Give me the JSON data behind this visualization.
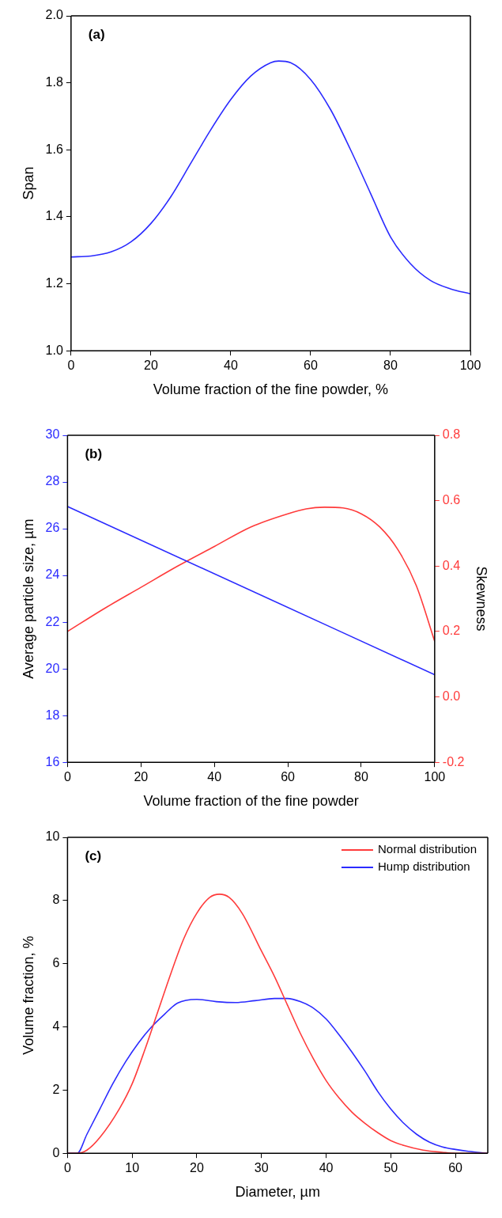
{
  "chart_data": [
    {
      "type": "line",
      "xlabel": "Volume fraction of the fine powder, %",
      "ylabel": "Span",
      "annotations": [
        "(a)"
      ],
      "xlim": [
        0,
        100
      ],
      "xticks": [
        0,
        20,
        40,
        60,
        80,
        100
      ],
      "ylim": [
        1,
        2
      ],
      "yticks": [
        {
          "value": 1,
          "label": "1.0"
        },
        {
          "value": 1.2,
          "label": "1.2"
        },
        {
          "value": 1.4,
          "label": "1.4"
        },
        {
          "value": 1.6,
          "label": "1.6"
        },
        {
          "value": 1.8,
          "label": "1.8"
        },
        {
          "value": 2,
          "label": "2.0"
        }
      ],
      "grid": false,
      "legend": false,
      "marker": "none",
      "line_style": "solid",
      "series": [
        {
          "color": "#2b2bff",
          "x": [
            0,
            5,
            10,
            15,
            20,
            25,
            30,
            35,
            40,
            45,
            50,
            52,
            55,
            60,
            65,
            70,
            75,
            80,
            85,
            90,
            95,
            100
          ],
          "values": [
            1.28,
            1.283,
            1.295,
            1.325,
            1.38,
            1.46,
            1.56,
            1.66,
            1.75,
            1.82,
            1.86,
            1.865,
            1.86,
            1.81,
            1.72,
            1.6,
            1.47,
            1.34,
            1.26,
            1.21,
            1.185,
            1.17
          ]
        }
      ]
    },
    {
      "type": "line",
      "xlabel": "Volume fraction of the fine powder",
      "ylabel": "Average particle size, µm",
      "y2label": "Skewness",
      "annotations": [
        "(b)"
      ],
      "xlim": [
        0,
        100
      ],
      "xticks": [
        0,
        20,
        40,
        60,
        80,
        100
      ],
      "ylim": [
        16,
        30
      ],
      "yticks": [
        16,
        18,
        20,
        22,
        24,
        26,
        28,
        30
      ],
      "y2lim": [
        -0.2,
        0.8
      ],
      "y2ticks": [
        {
          "value": -0.2,
          "label": "-0.2"
        },
        {
          "value": 0,
          "label": "0.0"
        },
        {
          "value": 0.2,
          "label": "0.2"
        },
        {
          "value": 0.4,
          "label": "0.4"
        },
        {
          "value": 0.6,
          "label": "0.6"
        },
        {
          "value": 0.8,
          "label": "0.8"
        }
      ],
      "grid": false,
      "legend": false,
      "marker": "none",
      "line_style": "solid",
      "series": [
        {
          "color": "#2b2bff",
          "x": [
            0,
            100
          ],
          "values": [
            26.95,
            19.75
          ]
        },
        {
          "color": "#ff3b3b",
          "axis": "y2",
          "x": [
            0,
            10,
            20,
            30,
            40,
            50,
            60,
            65,
            70,
            75,
            80,
            85,
            90,
            95,
            100
          ],
          "values": [
            0.2,
            0.27,
            0.335,
            0.4,
            0.46,
            0.52,
            0.56,
            0.575,
            0.58,
            0.578,
            0.56,
            0.52,
            0.45,
            0.34,
            0.17
          ]
        }
      ]
    },
    {
      "type": "line",
      "xlabel": "Diameter, µm",
      "ylabel": "Volume fraction, %",
      "annotations": [
        "(c)"
      ],
      "xlim": [
        0,
        65
      ],
      "xticks": [
        0,
        10,
        20,
        30,
        40,
        50,
        60
      ],
      "ylim": [
        0,
        10
      ],
      "yticks": [
        0,
        2,
        4,
        6,
        8,
        10
      ],
      "grid": false,
      "legend": "top right",
      "marker": "none",
      "line_style": "solid",
      "series": [
        {
          "name": "Normal distribution",
          "color": "#ff3b3b",
          "x": [
            0,
            1.5,
            3,
            5,
            8,
            10,
            12,
            14,
            16,
            18,
            20,
            22,
            23.5,
            25,
            27,
            30,
            32,
            34,
            36,
            38,
            40,
            42,
            44,
            46,
            48,
            50,
            52,
            55,
            58,
            60,
            65
          ],
          "values": [
            0,
            0,
            0.1,
            0.5,
            1.4,
            2.2,
            3.3,
            4.5,
            5.7,
            6.8,
            7.6,
            8.1,
            8.2,
            8.1,
            7.6,
            6.4,
            5.6,
            4.7,
            3.8,
            3,
            2.3,
            1.75,
            1.3,
            0.95,
            0.65,
            0.4,
            0.25,
            0.1,
            0.03,
            0,
            0
          ]
        },
        {
          "name": "Hump distribution",
          "color": "#2b2bff",
          "x": [
            0,
            1.5,
            3,
            5,
            7,
            9,
            11,
            13,
            15,
            17,
            20,
            23,
            26,
            29,
            32,
            34,
            36,
            38,
            40,
            42,
            44,
            46,
            48,
            50,
            52,
            54,
            56,
            58,
            60,
            62,
            65
          ],
          "values": [
            0,
            0,
            0.6,
            1.4,
            2.2,
            2.9,
            3.5,
            4,
            4.4,
            4.75,
            4.87,
            4.8,
            4.77,
            4.83,
            4.9,
            4.9,
            4.8,
            4.6,
            4.25,
            3.75,
            3.2,
            2.6,
            1.95,
            1.4,
            0.95,
            0.6,
            0.35,
            0.2,
            0.12,
            0.06,
            0
          ]
        }
      ]
    }
  ]
}
